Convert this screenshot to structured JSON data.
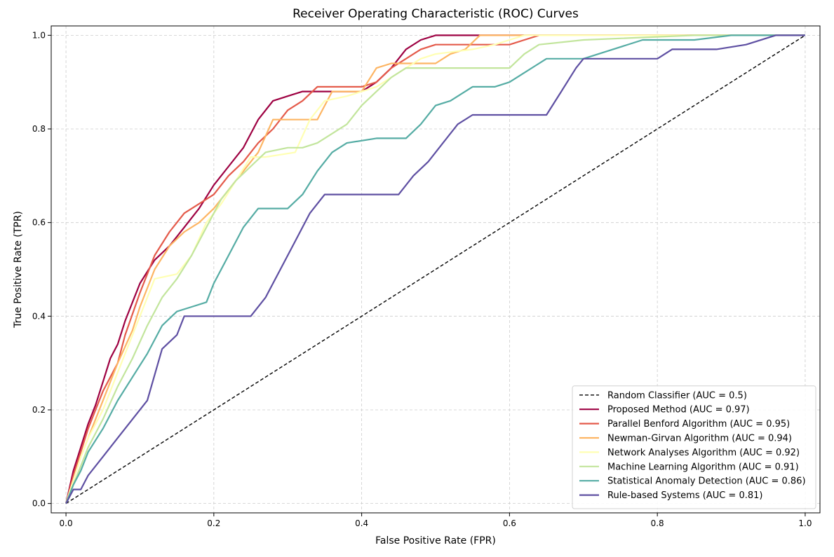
{
  "chart_data": {
    "type": "line",
    "title": "Receiver Operating Characteristic (ROC) Curves",
    "xlabel": "False Positive Rate (FPR)",
    "ylabel": "True Positive Rate (TPR)",
    "xlim": [
      -0.02,
      1.02
    ],
    "ylim": [
      -0.02,
      1.02
    ],
    "xticks": [
      0.0,
      0.2,
      0.4,
      0.6,
      0.8,
      1.0
    ],
    "yticks": [
      0.0,
      0.2,
      0.4,
      0.6,
      0.8,
      1.0
    ],
    "xtick_labels": [
      "0.0",
      "0.2",
      "0.4",
      "0.6",
      "0.8",
      "1.0"
    ],
    "ytick_labels": [
      "0.0",
      "0.2",
      "0.4",
      "0.6",
      "0.8",
      "1.0"
    ],
    "grid": true,
    "legend_position": "bottom-right",
    "series": [
      {
        "name": "Random Classifier (AUC = 0.5)",
        "color": "#000000",
        "dashed": true,
        "points": [
          [
            0,
            0
          ],
          [
            1,
            1
          ]
        ]
      },
      {
        "name": "Proposed Method (AUC = 0.97)",
        "color": "#9e0142",
        "points": [
          [
            0,
            0
          ],
          [
            0.01,
            0.07
          ],
          [
            0.02,
            0.12
          ],
          [
            0.03,
            0.17
          ],
          [
            0.04,
            0.21
          ],
          [
            0.05,
            0.26
          ],
          [
            0.06,
            0.31
          ],
          [
            0.07,
            0.34
          ],
          [
            0.08,
            0.39
          ],
          [
            0.09,
            0.43
          ],
          [
            0.1,
            0.47
          ],
          [
            0.12,
            0.52
          ],
          [
            0.14,
            0.55
          ],
          [
            0.16,
            0.59
          ],
          [
            0.18,
            0.63
          ],
          [
            0.2,
            0.68
          ],
          [
            0.22,
            0.72
          ],
          [
            0.24,
            0.76
          ],
          [
            0.26,
            0.82
          ],
          [
            0.28,
            0.86
          ],
          [
            0.3,
            0.87
          ],
          [
            0.32,
            0.88
          ],
          [
            0.4,
            0.88
          ],
          [
            0.42,
            0.9
          ],
          [
            0.44,
            0.93
          ],
          [
            0.46,
            0.97
          ],
          [
            0.48,
            0.99
          ],
          [
            0.5,
            1.0
          ],
          [
            1.0,
            1.0
          ]
        ]
      },
      {
        "name": "Parallel Benford Algorithm (AUC = 0.95)",
        "color": "#e45a4a",
        "points": [
          [
            0,
            0
          ],
          [
            0.01,
            0.06
          ],
          [
            0.02,
            0.11
          ],
          [
            0.03,
            0.16
          ],
          [
            0.04,
            0.2
          ],
          [
            0.05,
            0.24
          ],
          [
            0.07,
            0.3
          ],
          [
            0.08,
            0.36
          ],
          [
            0.1,
            0.45
          ],
          [
            0.12,
            0.53
          ],
          [
            0.14,
            0.58
          ],
          [
            0.16,
            0.62
          ],
          [
            0.18,
            0.64
          ],
          [
            0.2,
            0.66
          ],
          [
            0.22,
            0.7
          ],
          [
            0.24,
            0.73
          ],
          [
            0.26,
            0.77
          ],
          [
            0.28,
            0.8
          ],
          [
            0.3,
            0.84
          ],
          [
            0.32,
            0.86
          ],
          [
            0.34,
            0.89
          ],
          [
            0.4,
            0.89
          ],
          [
            0.42,
            0.9
          ],
          [
            0.44,
            0.93
          ],
          [
            0.46,
            0.95
          ],
          [
            0.48,
            0.97
          ],
          [
            0.5,
            0.98
          ],
          [
            0.52,
            0.98
          ],
          [
            0.6,
            0.98
          ],
          [
            0.62,
            0.99
          ],
          [
            0.64,
            1.0
          ],
          [
            1.0,
            1.0
          ]
        ]
      },
      {
        "name": "Newman-Girvan Algorithm (AUC = 0.94)",
        "color": "#fdb563",
        "points": [
          [
            0,
            0
          ],
          [
            0.01,
            0.05
          ],
          [
            0.02,
            0.1
          ],
          [
            0.03,
            0.14
          ],
          [
            0.05,
            0.22
          ],
          [
            0.07,
            0.3
          ],
          [
            0.09,
            0.37
          ],
          [
            0.1,
            0.42
          ],
          [
            0.12,
            0.5
          ],
          [
            0.14,
            0.55
          ],
          [
            0.16,
            0.58
          ],
          [
            0.18,
            0.6
          ],
          [
            0.2,
            0.63
          ],
          [
            0.22,
            0.67
          ],
          [
            0.24,
            0.71
          ],
          [
            0.26,
            0.75
          ],
          [
            0.28,
            0.82
          ],
          [
            0.3,
            0.82
          ],
          [
            0.34,
            0.82
          ],
          [
            0.36,
            0.88
          ],
          [
            0.4,
            0.88
          ],
          [
            0.42,
            0.93
          ],
          [
            0.44,
            0.94
          ],
          [
            0.5,
            0.94
          ],
          [
            0.52,
            0.96
          ],
          [
            0.54,
            0.97
          ],
          [
            0.56,
            1.0
          ],
          [
            1.0,
            1.0
          ]
        ]
      },
      {
        "name": "Network Analyses Algorithm (AUC = 0.92)",
        "color": "#ffffb3",
        "points": [
          [
            0,
            0
          ],
          [
            0.01,
            0.05
          ],
          [
            0.02,
            0.1
          ],
          [
            0.03,
            0.14
          ],
          [
            0.05,
            0.2
          ],
          [
            0.07,
            0.28
          ],
          [
            0.09,
            0.36
          ],
          [
            0.11,
            0.44
          ],
          [
            0.12,
            0.48
          ],
          [
            0.15,
            0.49
          ],
          [
            0.17,
            0.53
          ],
          [
            0.19,
            0.6
          ],
          [
            0.21,
            0.64
          ],
          [
            0.23,
            0.69
          ],
          [
            0.25,
            0.74
          ],
          [
            0.27,
            0.74
          ],
          [
            0.31,
            0.75
          ],
          [
            0.33,
            0.82
          ],
          [
            0.35,
            0.86
          ],
          [
            0.38,
            0.87
          ],
          [
            0.4,
            0.88
          ],
          [
            0.42,
            0.89
          ],
          [
            0.44,
            0.91
          ],
          [
            0.46,
            0.93
          ],
          [
            0.48,
            0.95
          ],
          [
            0.5,
            0.96
          ],
          [
            0.55,
            0.97
          ],
          [
            0.58,
            0.98
          ],
          [
            0.6,
            0.99
          ],
          [
            0.62,
            1.0
          ],
          [
            1.0,
            1.0
          ]
        ]
      },
      {
        "name": "Machine Learning Algorithm (AUC = 0.91)",
        "color": "#c2e59c",
        "points": [
          [
            0,
            0
          ],
          [
            0.01,
            0.04
          ],
          [
            0.02,
            0.08
          ],
          [
            0.03,
            0.12
          ],
          [
            0.05,
            0.18
          ],
          [
            0.07,
            0.25
          ],
          [
            0.09,
            0.31
          ],
          [
            0.11,
            0.38
          ],
          [
            0.13,
            0.44
          ],
          [
            0.15,
            0.48
          ],
          [
            0.17,
            0.53
          ],
          [
            0.19,
            0.59
          ],
          [
            0.21,
            0.65
          ],
          [
            0.23,
            0.69
          ],
          [
            0.25,
            0.72
          ],
          [
            0.27,
            0.75
          ],
          [
            0.3,
            0.76
          ],
          [
            0.32,
            0.76
          ],
          [
            0.34,
            0.77
          ],
          [
            0.36,
            0.79
          ],
          [
            0.38,
            0.81
          ],
          [
            0.4,
            0.85
          ],
          [
            0.42,
            0.88
          ],
          [
            0.44,
            0.91
          ],
          [
            0.46,
            0.93
          ],
          [
            0.52,
            0.93
          ],
          [
            0.6,
            0.93
          ],
          [
            0.62,
            0.96
          ],
          [
            0.64,
            0.98
          ],
          [
            0.7,
            0.99
          ],
          [
            0.85,
            1.0
          ],
          [
            1.0,
            1.0
          ]
        ]
      },
      {
        "name": "Statistical Anomaly Detection (AUC = 0.86)",
        "color": "#55aca4",
        "points": [
          [
            0,
            0
          ],
          [
            0.01,
            0.04
          ],
          [
            0.02,
            0.07
          ],
          [
            0.03,
            0.11
          ],
          [
            0.05,
            0.16
          ],
          [
            0.07,
            0.22
          ],
          [
            0.09,
            0.27
          ],
          [
            0.11,
            0.32
          ],
          [
            0.13,
            0.38
          ],
          [
            0.15,
            0.41
          ],
          [
            0.17,
            0.42
          ],
          [
            0.19,
            0.43
          ],
          [
            0.2,
            0.47
          ],
          [
            0.22,
            0.53
          ],
          [
            0.24,
            0.59
          ],
          [
            0.26,
            0.63
          ],
          [
            0.3,
            0.63
          ],
          [
            0.32,
            0.66
          ],
          [
            0.34,
            0.71
          ],
          [
            0.36,
            0.75
          ],
          [
            0.38,
            0.77
          ],
          [
            0.42,
            0.78
          ],
          [
            0.46,
            0.78
          ],
          [
            0.48,
            0.81
          ],
          [
            0.5,
            0.85
          ],
          [
            0.52,
            0.86
          ],
          [
            0.55,
            0.89
          ],
          [
            0.58,
            0.89
          ],
          [
            0.6,
            0.9
          ],
          [
            0.62,
            0.92
          ],
          [
            0.65,
            0.95
          ],
          [
            0.7,
            0.95
          ],
          [
            0.74,
            0.97
          ],
          [
            0.78,
            0.99
          ],
          [
            0.85,
            0.99
          ],
          [
            0.9,
            1.0
          ],
          [
            1.0,
            1.0
          ]
        ]
      },
      {
        "name": "Rule-based Systems (AUC = 0.81)",
        "color": "#5e4fa2",
        "points": [
          [
            0,
            0
          ],
          [
            0.01,
            0.03
          ],
          [
            0.02,
            0.03
          ],
          [
            0.03,
            0.06
          ],
          [
            0.05,
            0.1
          ],
          [
            0.07,
            0.14
          ],
          [
            0.09,
            0.18
          ],
          [
            0.11,
            0.22
          ],
          [
            0.13,
            0.33
          ],
          [
            0.15,
            0.36
          ],
          [
            0.16,
            0.4
          ],
          [
            0.2,
            0.4
          ],
          [
            0.25,
            0.4
          ],
          [
            0.27,
            0.44
          ],
          [
            0.29,
            0.5
          ],
          [
            0.31,
            0.56
          ],
          [
            0.33,
            0.62
          ],
          [
            0.35,
            0.66
          ],
          [
            0.4,
            0.66
          ],
          [
            0.45,
            0.66
          ],
          [
            0.47,
            0.7
          ],
          [
            0.49,
            0.73
          ],
          [
            0.51,
            0.77
          ],
          [
            0.53,
            0.81
          ],
          [
            0.55,
            0.83
          ],
          [
            0.6,
            0.83
          ],
          [
            0.65,
            0.83
          ],
          [
            0.67,
            0.88
          ],
          [
            0.69,
            0.93
          ],
          [
            0.7,
            0.95
          ],
          [
            0.75,
            0.95
          ],
          [
            0.8,
            0.95
          ],
          [
            0.82,
            0.97
          ],
          [
            0.88,
            0.97
          ],
          [
            0.92,
            0.98
          ],
          [
            0.96,
            1.0
          ],
          [
            1.0,
            1.0
          ]
        ]
      }
    ]
  }
}
